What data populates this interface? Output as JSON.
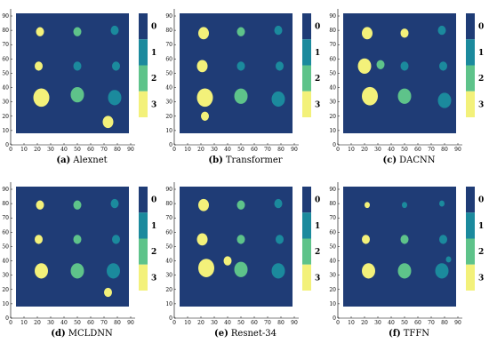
{
  "colorbar": {
    "labels": [
      "0",
      "1",
      "2",
      "3"
    ],
    "colors": [
      "#1f3c76",
      "#1b8a9d",
      "#5ec38a",
      "#f3f17a"
    ]
  },
  "xlim": [
    0,
    90
  ],
  "ylim": [
    0,
    90
  ],
  "xticks": [
    0,
    10,
    20,
    30,
    40,
    50,
    60,
    70,
    80,
    90
  ],
  "yticks": [
    0,
    10,
    20,
    30,
    40,
    50,
    60,
    70,
    80,
    90
  ],
  "panels": [
    {
      "label": "(a)",
      "name": "Alexnet",
      "clusters": [
        {
          "x": 22,
          "y": 79,
          "class": 3,
          "size": 3
        },
        {
          "x": 50,
          "y": 79,
          "class": 2,
          "size": 3
        },
        {
          "x": 78,
          "y": 80,
          "class": 1,
          "size": 3
        },
        {
          "x": 21,
          "y": 55,
          "class": 3,
          "size": 3
        },
        {
          "x": 50,
          "y": 55,
          "class": 1,
          "size": 3
        },
        {
          "x": 79,
          "y": 55,
          "class": 1,
          "size": 3
        },
        {
          "x": 23,
          "y": 33,
          "class": 3,
          "size": 6
        },
        {
          "x": 50,
          "y": 35,
          "class": 2,
          "size": 5
        },
        {
          "x": 78,
          "y": 33,
          "class": 1,
          "size": 5
        },
        {
          "x": 73,
          "y": 16,
          "class": 3,
          "size": 4
        }
      ]
    },
    {
      "label": "(b)",
      "name": "Transformer",
      "clusters": [
        {
          "x": 22,
          "y": 78,
          "class": 3,
          "size": 4
        },
        {
          "x": 50,
          "y": 79,
          "class": 2,
          "size": 3
        },
        {
          "x": 78,
          "y": 80,
          "class": 1,
          "size": 3
        },
        {
          "x": 21,
          "y": 55,
          "class": 3,
          "size": 4
        },
        {
          "x": 50,
          "y": 55,
          "class": 1,
          "size": 3
        },
        {
          "x": 79,
          "y": 55,
          "class": 1,
          "size": 3
        },
        {
          "x": 23,
          "y": 33,
          "class": 3,
          "size": 6
        },
        {
          "x": 50,
          "y": 34,
          "class": 2,
          "size": 5
        },
        {
          "x": 78,
          "y": 32,
          "class": 1,
          "size": 5
        },
        {
          "x": 23,
          "y": 20,
          "class": 3,
          "size": 3
        }
      ]
    },
    {
      "label": "(c)",
      "name": "DACNN",
      "clusters": [
        {
          "x": 22,
          "y": 78,
          "class": 3,
          "size": 4
        },
        {
          "x": 50,
          "y": 78,
          "class": 3,
          "size": 3
        },
        {
          "x": 78,
          "y": 80,
          "class": 1,
          "size": 3
        },
        {
          "x": 20,
          "y": 55,
          "class": 3,
          "size": 5
        },
        {
          "x": 50,
          "y": 55,
          "class": 1,
          "size": 3
        },
        {
          "x": 79,
          "y": 55,
          "class": 1,
          "size": 3
        },
        {
          "x": 24,
          "y": 34,
          "class": 3,
          "size": 6
        },
        {
          "x": 50,
          "y": 34,
          "class": 2,
          "size": 5
        },
        {
          "x": 80,
          "y": 31,
          "class": 1,
          "size": 5
        },
        {
          "x": 32,
          "y": 56,
          "class": 2,
          "size": 3
        }
      ]
    },
    {
      "label": "(d)",
      "name": "MCLDNN",
      "clusters": [
        {
          "x": 22,
          "y": 79,
          "class": 3,
          "size": 3
        },
        {
          "x": 50,
          "y": 79,
          "class": 2,
          "size": 3
        },
        {
          "x": 78,
          "y": 80,
          "class": 1,
          "size": 3
        },
        {
          "x": 21,
          "y": 55,
          "class": 3,
          "size": 3
        },
        {
          "x": 50,
          "y": 55,
          "class": 2,
          "size": 3
        },
        {
          "x": 79,
          "y": 55,
          "class": 1,
          "size": 3
        },
        {
          "x": 23,
          "y": 33,
          "class": 3,
          "size": 5
        },
        {
          "x": 50,
          "y": 33,
          "class": 2,
          "size": 5
        },
        {
          "x": 77,
          "y": 33,
          "class": 1,
          "size": 5
        },
        {
          "x": 73,
          "y": 18,
          "class": 3,
          "size": 3
        }
      ]
    },
    {
      "label": "(e)",
      "name": "Resnet-34",
      "clusters": [
        {
          "x": 22,
          "y": 79,
          "class": 3,
          "size": 4
        },
        {
          "x": 50,
          "y": 79,
          "class": 2,
          "size": 3
        },
        {
          "x": 78,
          "y": 80,
          "class": 1,
          "size": 3
        },
        {
          "x": 21,
          "y": 55,
          "class": 3,
          "size": 4
        },
        {
          "x": 50,
          "y": 55,
          "class": 2,
          "size": 3
        },
        {
          "x": 79,
          "y": 55,
          "class": 1,
          "size": 3
        },
        {
          "x": 24,
          "y": 35,
          "class": 3,
          "size": 6
        },
        {
          "x": 50,
          "y": 34,
          "class": 2,
          "size": 5
        },
        {
          "x": 78,
          "y": 33,
          "class": 1,
          "size": 5
        },
        {
          "x": 40,
          "y": 40,
          "class": 3,
          "size": 3
        }
      ]
    },
    {
      "label": "(f)",
      "name": "TFFN",
      "clusters": [
        {
          "x": 22,
          "y": 79,
          "class": 3,
          "size": 2
        },
        {
          "x": 50,
          "y": 79,
          "class": 1,
          "size": 2
        },
        {
          "x": 78,
          "y": 80,
          "class": 1,
          "size": 2
        },
        {
          "x": 21,
          "y": 55,
          "class": 3,
          "size": 3
        },
        {
          "x": 50,
          "y": 55,
          "class": 2,
          "size": 3
        },
        {
          "x": 79,
          "y": 55,
          "class": 1,
          "size": 3
        },
        {
          "x": 23,
          "y": 33,
          "class": 3,
          "size": 5
        },
        {
          "x": 50,
          "y": 33,
          "class": 2,
          "size": 5
        },
        {
          "x": 78,
          "y": 33,
          "class": 1,
          "size": 5
        },
        {
          "x": 83,
          "y": 41,
          "class": 1,
          "size": 2
        }
      ]
    }
  ]
}
